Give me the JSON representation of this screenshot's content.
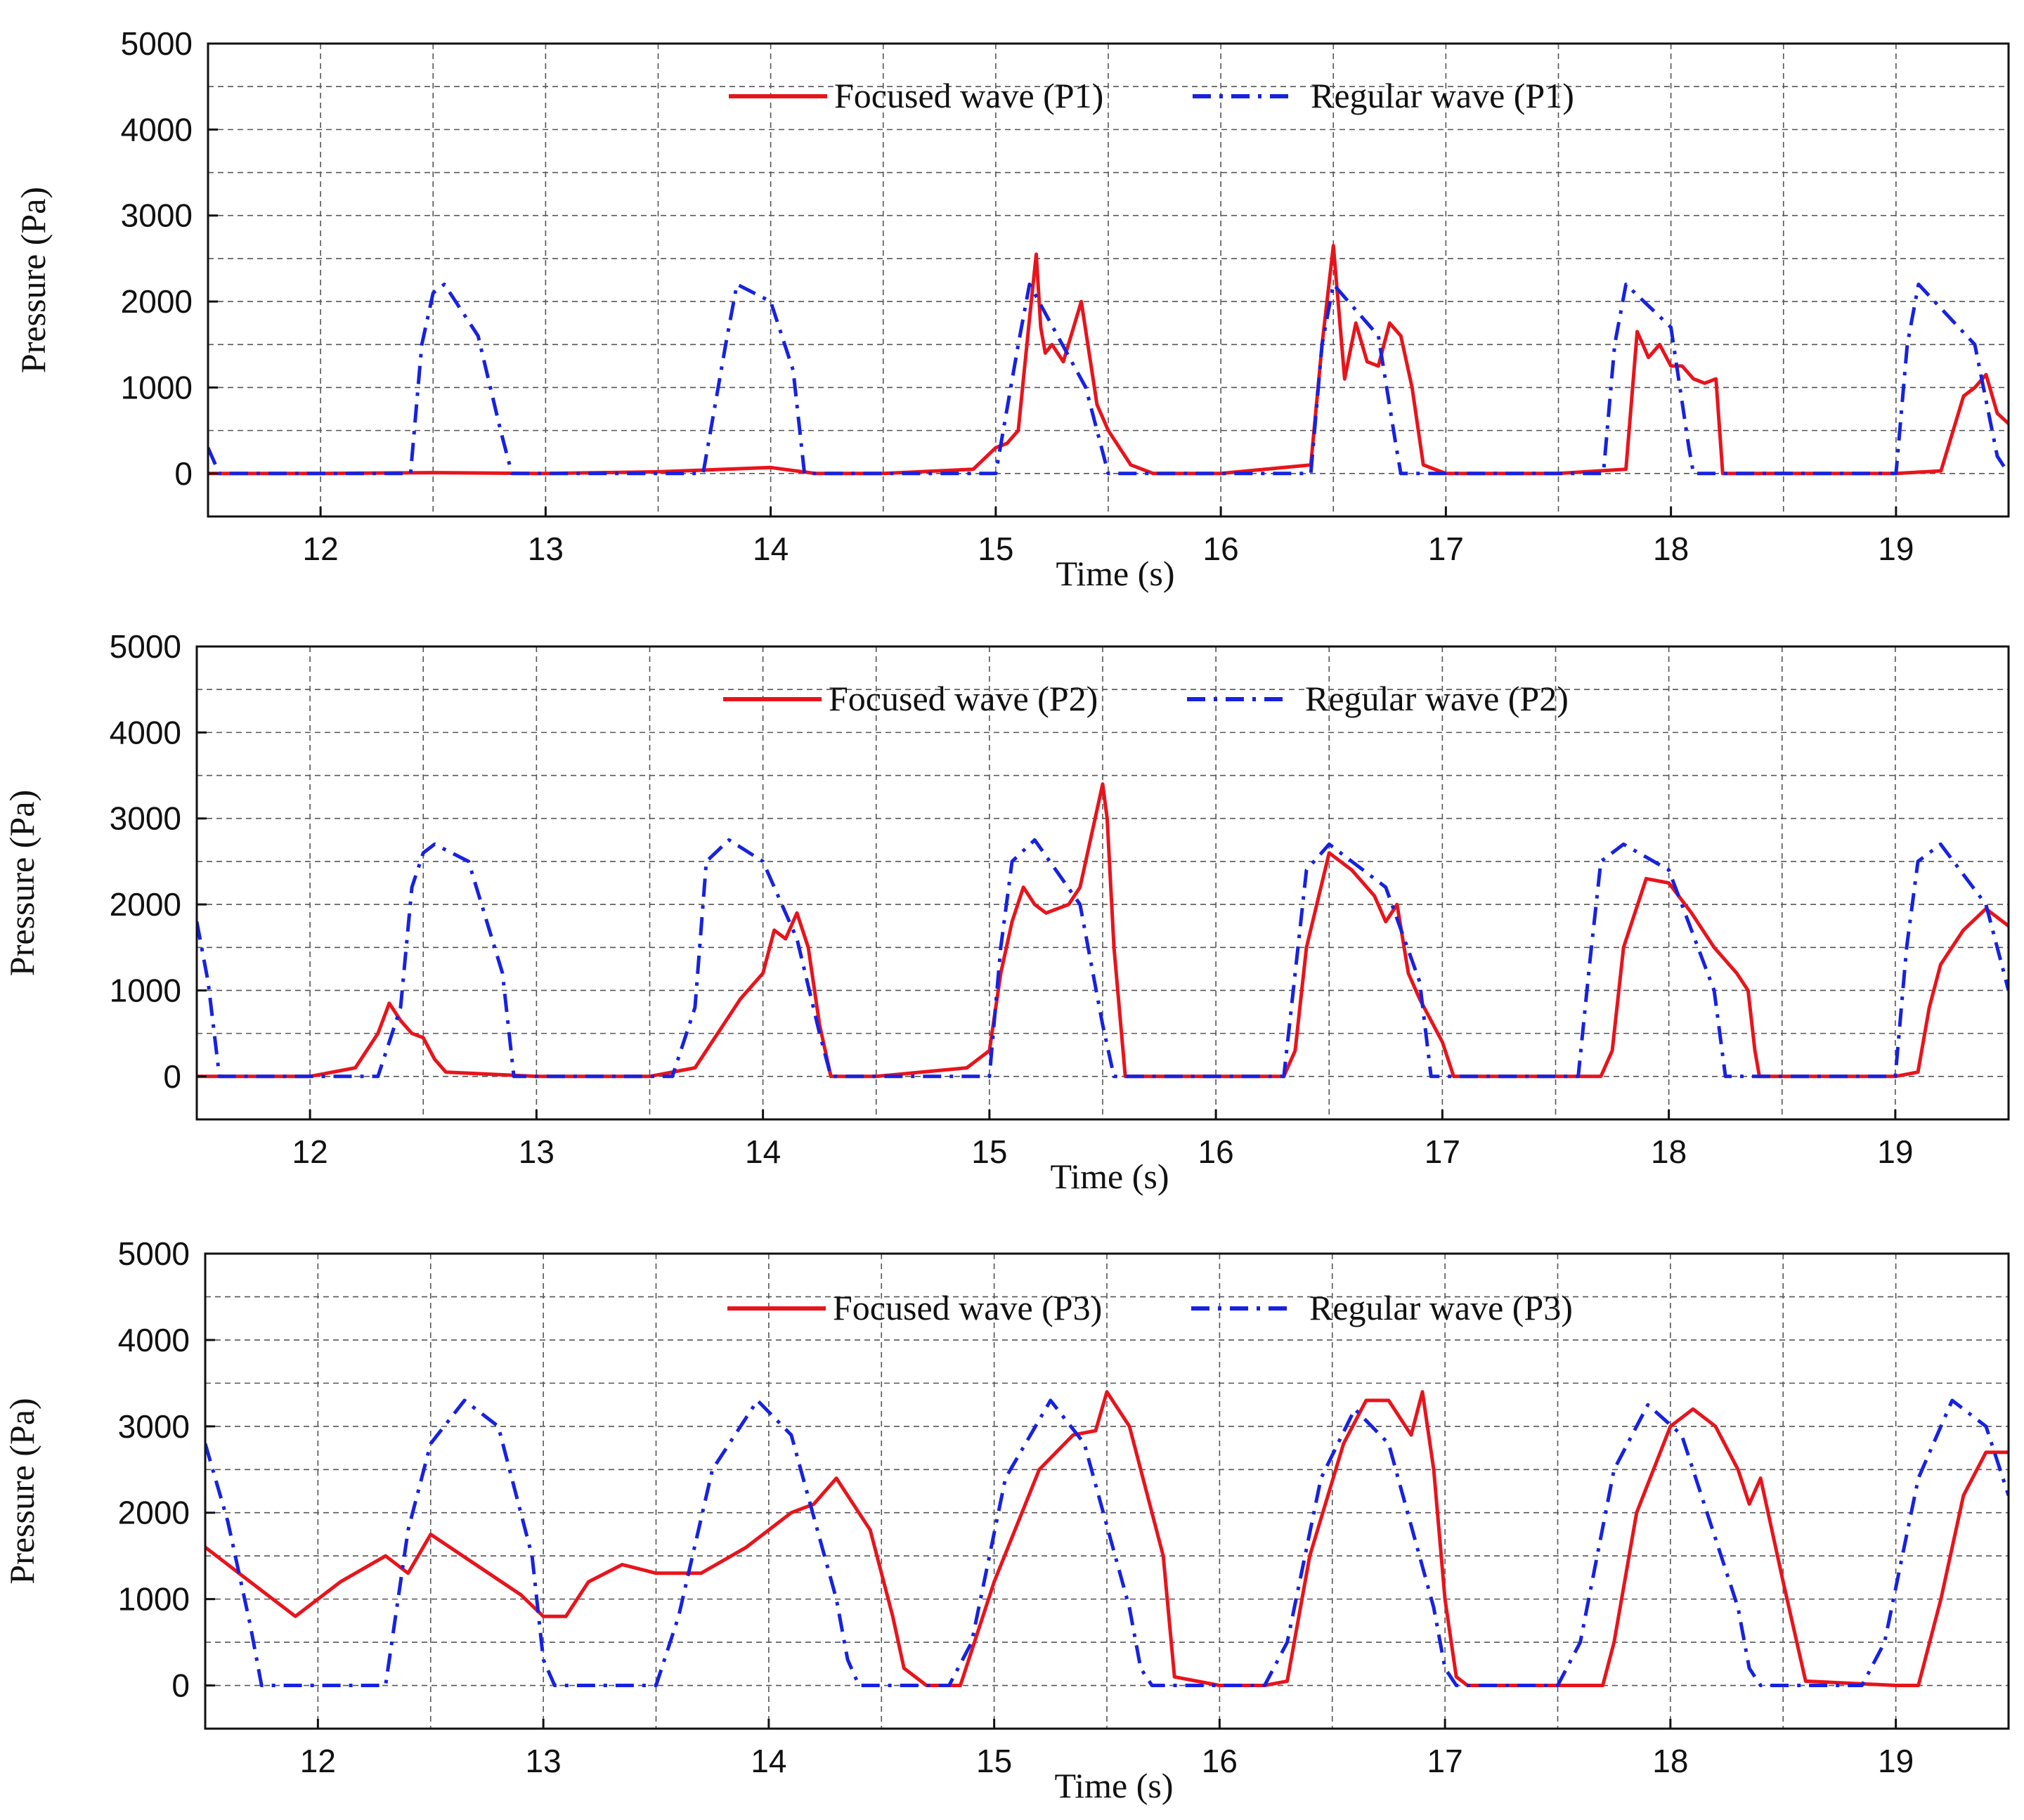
{
  "chart_data": [
    {
      "type": "line",
      "title": "",
      "xlabel": "Time (s)",
      "ylabel": "Pressure (Pa)",
      "xlim": [
        11.5,
        19.5
      ],
      "ylim": [
        -500,
        5000
      ],
      "xticks": [
        12,
        13,
        14,
        15,
        16,
        17,
        18,
        19
      ],
      "yticks": [
        0,
        1000,
        2000,
        3000,
        4000,
        5000
      ],
      "xtick_labels": [
        "12",
        "13",
        "14",
        "15",
        "16",
        "17",
        "18",
        "19"
      ],
      "ytick_labels": [
        "0",
        "1000",
        "2000",
        "3000",
        "4000",
        "5000"
      ],
      "grid": true,
      "legend_position": "top-center",
      "series": [
        {
          "name": "Focused wave (P1)",
          "color": "#e8141c",
          "style": "solid",
          "x": [
            11.5,
            12.0,
            12.5,
            13.0,
            13.5,
            14.0,
            14.2,
            14.5,
            14.9,
            15.0,
            15.05,
            15.1,
            15.15,
            15.18,
            15.2,
            15.22,
            15.25,
            15.3,
            15.38,
            15.45,
            15.5,
            15.6,
            15.7,
            16.0,
            16.4,
            16.45,
            16.5,
            16.55,
            16.6,
            16.65,
            16.7,
            16.75,
            16.8,
            16.85,
            16.9,
            17.0,
            17.5,
            17.8,
            17.85,
            17.9,
            17.95,
            18.0,
            18.05,
            18.1,
            18.15,
            18.2,
            18.23,
            18.3,
            18.5,
            19.0,
            19.2,
            19.3,
            19.35,
            19.4,
            19.45,
            19.5
          ],
          "y": [
            0,
            0,
            10,
            0,
            20,
            70,
            0,
            0,
            50,
            300,
            350,
            500,
            1800,
            2550,
            1700,
            1400,
            1500,
            1300,
            2000,
            800,
            500,
            100,
            0,
            0,
            100,
            1500,
            2650,
            1100,
            1750,
            1300,
            1250,
            1750,
            1600,
            1000,
            100,
            0,
            0,
            50,
            1650,
            1350,
            1500,
            1250,
            1250,
            1100,
            1050,
            1100,
            0,
            0,
            0,
            0,
            30,
            900,
            1000,
            1150,
            700,
            580
          ]
        },
        {
          "name": "Regular wave (P1)",
          "color": "#1722e0",
          "style": "dashdot",
          "x": [
            11.5,
            11.55,
            12.4,
            12.45,
            12.5,
            12.55,
            12.7,
            12.8,
            12.85,
            13.7,
            13.8,
            13.85,
            14.0,
            14.1,
            14.15,
            15.0,
            15.1,
            15.15,
            15.4,
            15.5,
            15.55,
            16.4,
            16.45,
            16.5,
            16.7,
            16.78,
            16.8,
            17.7,
            17.75,
            17.8,
            18.0,
            18.08,
            18.1,
            19.0,
            19.05,
            19.1,
            19.35,
            19.45,
            19.5
          ],
          "y": [
            300,
            0,
            0,
            1500,
            2100,
            2200,
            1600,
            500,
            0,
            0,
            1500,
            2200,
            2000,
            1200,
            0,
            0,
            1500,
            2200,
            1000,
            0,
            0,
            0,
            1500,
            2200,
            1600,
            300,
            0,
            0,
            1500,
            2200,
            1700,
            300,
            0,
            0,
            1500,
            2200,
            1500,
            200,
            0
          ]
        }
      ]
    },
    {
      "type": "line",
      "title": "",
      "xlabel": "Time (s)",
      "ylabel": "Pressure (Pa)",
      "xlim": [
        11.5,
        19.5
      ],
      "ylim": [
        -500,
        5000
      ],
      "xticks": [
        12,
        13,
        14,
        15,
        16,
        17,
        18,
        19
      ],
      "yticks": [
        0,
        1000,
        2000,
        3000,
        4000,
        5000
      ],
      "xtick_labels": [
        "12",
        "13",
        "14",
        "15",
        "16",
        "17",
        "18",
        "19"
      ],
      "ytick_labels": [
        "0",
        "1000",
        "2000",
        "3000",
        "4000",
        "5000"
      ],
      "grid": true,
      "legend_position": "top-center",
      "series": [
        {
          "name": "Focused wave (P2)",
          "color": "#e8141c",
          "style": "solid",
          "x": [
            11.5,
            12.0,
            12.2,
            12.3,
            12.35,
            12.4,
            12.45,
            12.5,
            12.55,
            12.6,
            13.0,
            13.5,
            13.7,
            13.8,
            13.9,
            14.0,
            14.05,
            14.1,
            14.15,
            14.2,
            14.25,
            14.3,
            14.5,
            14.9,
            15.0,
            15.05,
            15.1,
            15.15,
            15.2,
            15.25,
            15.3,
            15.35,
            15.4,
            15.45,
            15.5,
            15.52,
            15.55,
            15.6,
            15.65,
            16.0,
            16.3,
            16.35,
            16.4,
            16.5,
            16.6,
            16.7,
            16.75,
            16.8,
            16.85,
            16.9,
            17.0,
            17.05,
            17.5,
            17.7,
            17.75,
            17.8,
            17.9,
            18.0,
            18.1,
            18.2,
            18.3,
            18.35,
            18.38,
            18.4,
            18.5,
            19.0,
            19.1,
            19.15,
            19.2,
            19.3,
            19.4,
            19.5
          ],
          "y": [
            0,
            0,
            100,
            500,
            850,
            650,
            500,
            450,
            200,
            50,
            0,
            0,
            100,
            500,
            900,
            1200,
            1700,
            1600,
            1900,
            1500,
            600,
            0,
            0,
            100,
            300,
            1200,
            1800,
            2200,
            2000,
            1900,
            1950,
            2000,
            2200,
            2800,
            3400,
            3000,
            1500,
            0,
            0,
            0,
            0,
            300,
            1500,
            2600,
            2400,
            2100,
            1800,
            2000,
            1200,
            900,
            400,
            0,
            0,
            0,
            300,
            1500,
            2300,
            2250,
            1900,
            1500,
            1200,
            1000,
            300,
            0,
            0,
            0,
            50,
            800,
            1300,
            1700,
            1950,
            1750
          ]
        },
        {
          "name": "Regular wave (P2)",
          "color": "#1722e0",
          "style": "dashdot",
          "x": [
            11.5,
            11.55,
            11.6,
            12.3,
            12.4,
            12.45,
            12.5,
            12.55,
            12.7,
            12.85,
            12.9,
            13.6,
            13.7,
            13.75,
            13.85,
            14.0,
            14.15,
            14.25,
            14.3,
            15.0,
            15.05,
            15.1,
            15.2,
            15.4,
            15.5,
            15.55,
            16.3,
            16.35,
            16.4,
            16.5,
            16.75,
            16.9,
            16.95,
            17.6,
            17.65,
            17.7,
            17.8,
            18.0,
            18.2,
            18.25,
            19.0,
            19.05,
            19.1,
            19.2,
            19.4,
            19.5
          ],
          "y": [
            1800,
            1100,
            0,
            0,
            800,
            2200,
            2600,
            2700,
            2500,
            1200,
            0,
            0,
            800,
            2500,
            2750,
            2500,
            1600,
            500,
            0,
            0,
            1500,
            2500,
            2750,
            2000,
            600,
            0,
            0,
            1200,
            2400,
            2700,
            2200,
            1100,
            0,
            0,
            1300,
            2500,
            2700,
            2400,
            1000,
            0,
            0,
            1500,
            2500,
            2700,
            2000,
            1000
          ]
        }
      ]
    },
    {
      "type": "line",
      "title": "",
      "xlabel": "Time (s)",
      "ylabel": "Pressure (Pa)",
      "xlim": [
        11.5,
        19.5
      ],
      "ylim": [
        -500,
        5000
      ],
      "xticks": [
        12,
        13,
        14,
        15,
        16,
        17,
        18,
        19
      ],
      "yticks": [
        0,
        1000,
        2000,
        3000,
        4000,
        5000
      ],
      "xtick_labels": [
        "12",
        "13",
        "14",
        "15",
        "16",
        "17",
        "18",
        "19"
      ],
      "ytick_labels": [
        "0",
        "1000",
        "2000",
        "3000",
        "4000",
        "5000"
      ],
      "grid": true,
      "legend_position": "top-center",
      "series": [
        {
          "name": "Focused wave (P3)",
          "color": "#e8141c",
          "style": "solid",
          "x": [
            11.5,
            11.7,
            11.9,
            12.1,
            12.3,
            12.4,
            12.5,
            12.7,
            12.9,
            13.0,
            13.1,
            13.2,
            13.35,
            13.5,
            13.7,
            13.9,
            14.1,
            14.2,
            14.3,
            14.45,
            14.55,
            14.6,
            14.7,
            14.85,
            15.0,
            15.2,
            15.35,
            15.45,
            15.5,
            15.6,
            15.75,
            15.8,
            16.0,
            16.2,
            16.3,
            16.4,
            16.55,
            16.65,
            16.75,
            16.85,
            16.9,
            16.95,
            17.0,
            17.05,
            17.1,
            17.5,
            17.7,
            17.75,
            17.85,
            18.0,
            18.1,
            18.2,
            18.3,
            18.35,
            18.4,
            18.5,
            18.6,
            19.0,
            19.1,
            19.2,
            19.3,
            19.4,
            19.5
          ],
          "y": [
            1600,
            1200,
            800,
            1200,
            1500,
            1300,
            1750,
            1400,
            1050,
            800,
            800,
            1200,
            1400,
            1300,
            1300,
            1600,
            2000,
            2100,
            2400,
            1800,
            800,
            200,
            0,
            0,
            1200,
            2500,
            2900,
            2950,
            3400,
            3000,
            1500,
            100,
            0,
            0,
            50,
            1500,
            2800,
            3300,
            3300,
            2900,
            3400,
            2500,
            1000,
            100,
            0,
            0,
            0,
            500,
            2000,
            3000,
            3200,
            3000,
            2500,
            2100,
            2400,
            1200,
            50,
            0,
            0,
            1000,
            2200,
            2700,
            2700
          ]
        },
        {
          "name": "Regular wave (P3)",
          "color": "#1722e0",
          "style": "dashdot",
          "x": [
            11.5,
            11.6,
            11.7,
            11.75,
            12.2,
            12.3,
            12.4,
            12.5,
            12.65,
            12.8,
            12.95,
            13.0,
            13.05,
            13.5,
            13.6,
            13.75,
            13.95,
            14.1,
            14.3,
            14.35,
            14.4,
            14.8,
            14.9,
            15.05,
            15.25,
            15.4,
            15.6,
            15.65,
            15.7,
            16.2,
            16.3,
            16.45,
            16.6,
            16.75,
            16.95,
            17.0,
            17.05,
            17.5,
            17.6,
            17.75,
            17.9,
            18.05,
            18.3,
            18.35,
            18.4,
            18.85,
            18.95,
            19.1,
            19.25,
            19.4,
            19.5
          ],
          "y": [
            2800,
            1900,
            700,
            0,
            0,
            0,
            1800,
            2800,
            3300,
            3000,
            1500,
            300,
            0,
            0,
            800,
            2500,
            3300,
            2900,
            1000,
            300,
            0,
            0,
            500,
            2400,
            3300,
            2800,
            900,
            200,
            0,
            0,
            500,
            2400,
            3200,
            2800,
            900,
            200,
            0,
            0,
            500,
            2500,
            3250,
            2900,
            900,
            200,
            0,
            0,
            500,
            2400,
            3300,
            3000,
            2200
          ]
        }
      ]
    }
  ]
}
